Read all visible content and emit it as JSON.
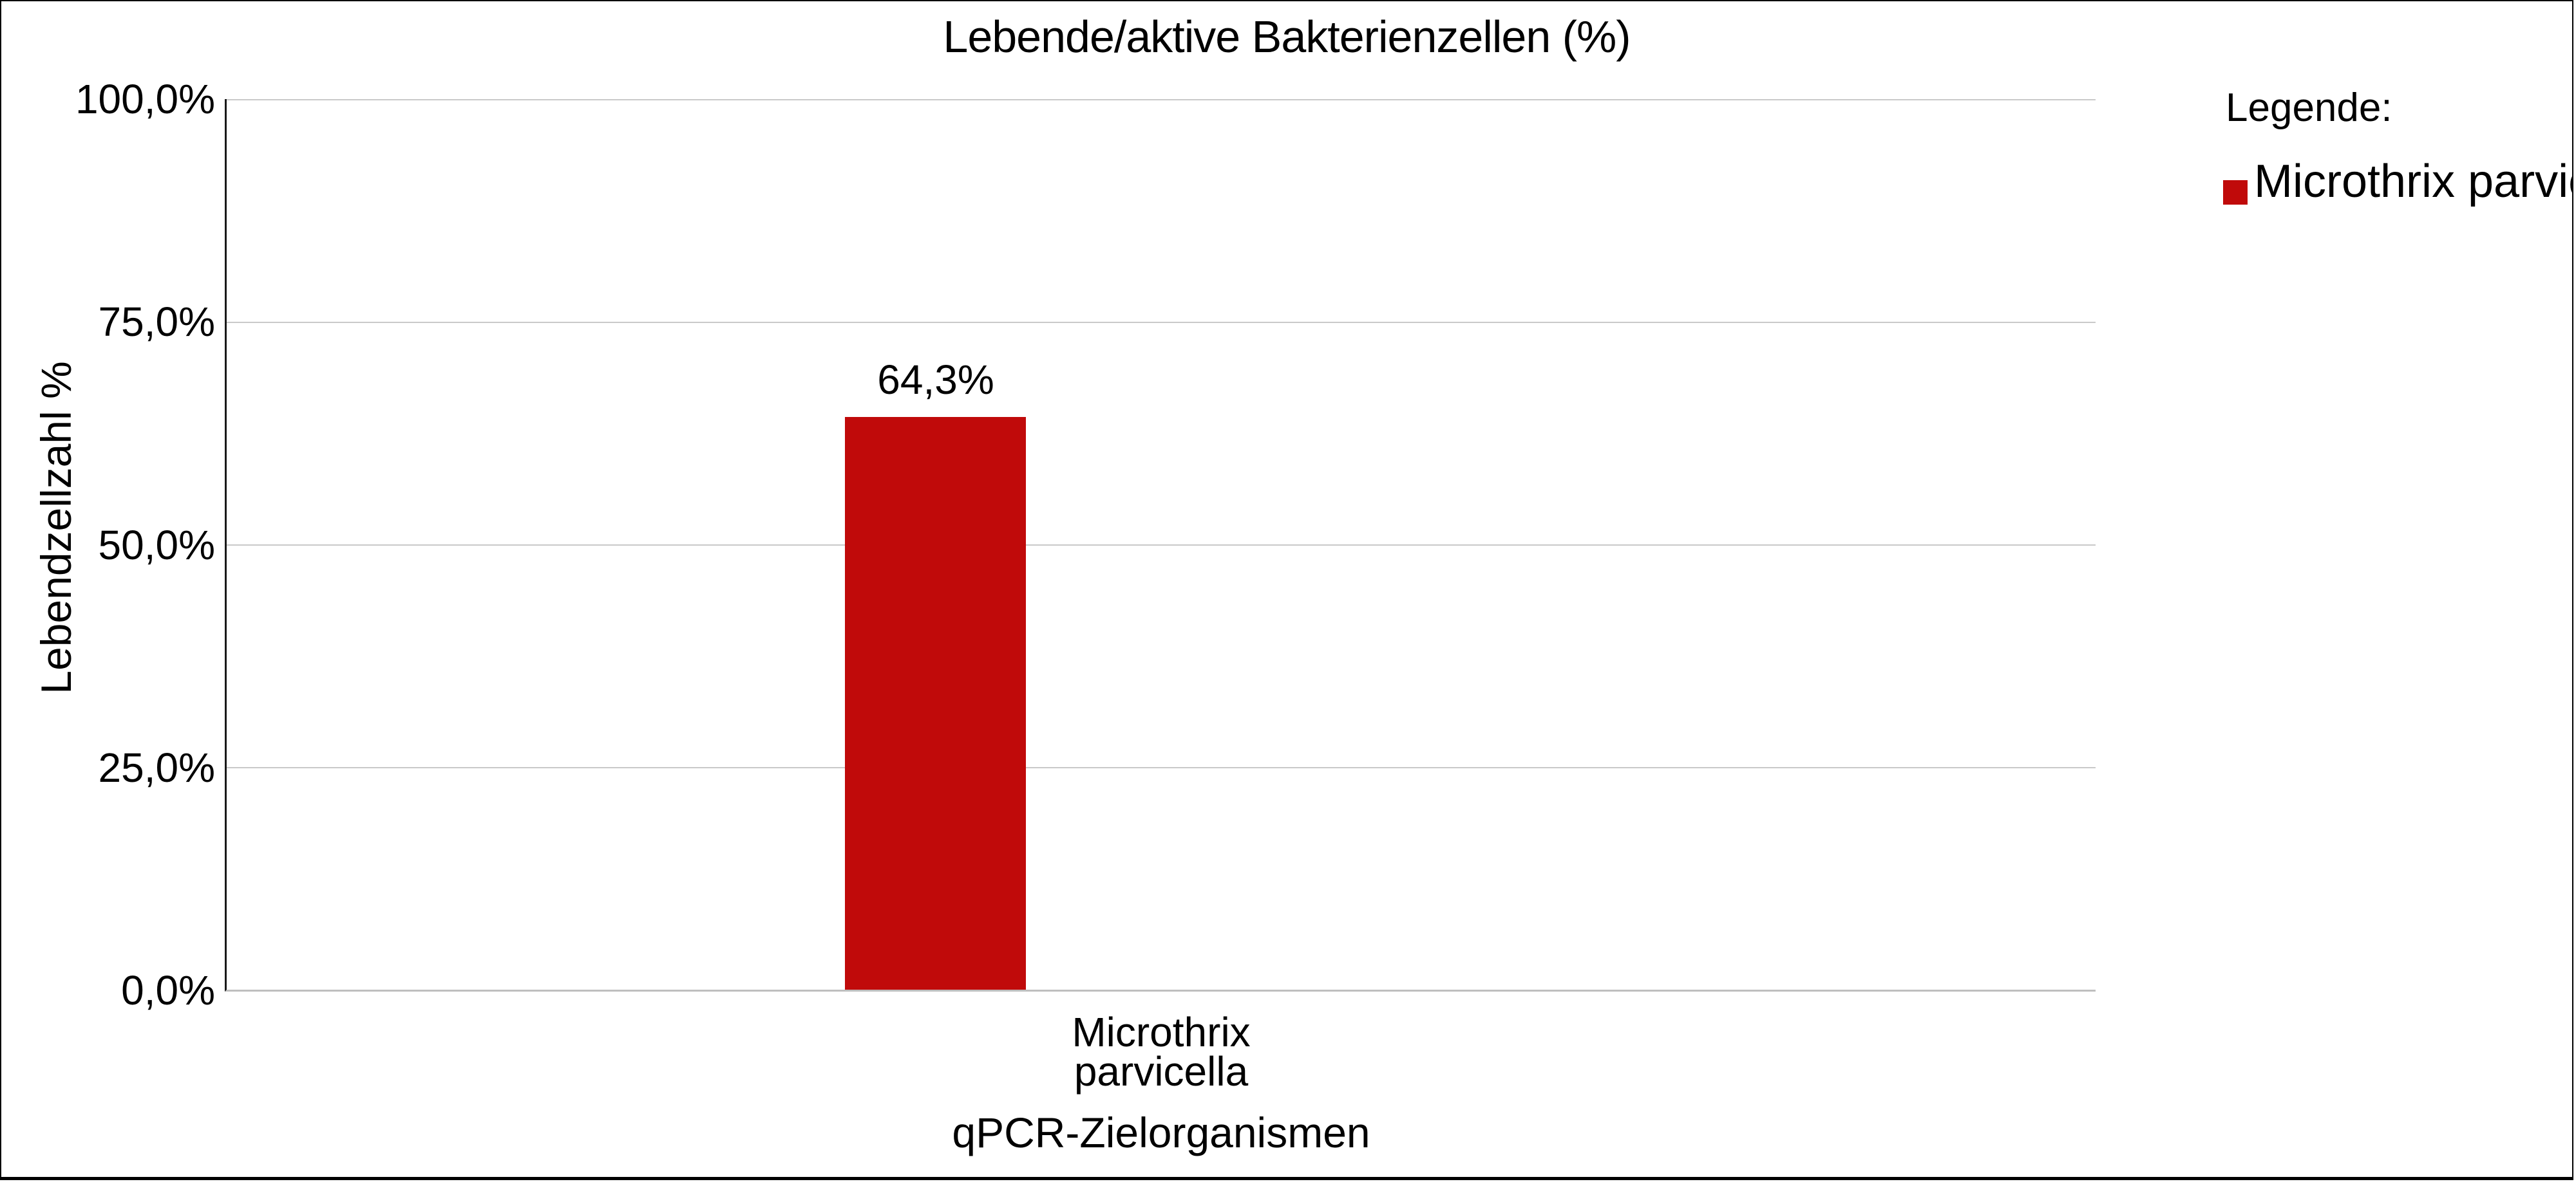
{
  "window": {
    "background": "#ffffff",
    "border_color": "#000000"
  },
  "chart_data": {
    "type": "bar",
    "title": "Lebende/aktive Bakterienzellen (%)",
    "xlabel": "qPCR-Zielorganismen",
    "ylabel": "Lebendzellzahl %",
    "categories": [
      "Microthrix parvicella"
    ],
    "category_tick_lines": [
      [
        "Microthrix",
        "parvicella"
      ]
    ],
    "values": [
      64.3
    ],
    "value_labels": [
      "64,3%"
    ],
    "ylim": [
      0,
      100
    ],
    "yticks": [
      {
        "value": 100,
        "label": "100,0%"
      },
      {
        "value": 75,
        "label": "75,0%"
      },
      {
        "value": 50,
        "label": "50,0%"
      },
      {
        "value": 25,
        "label": "25,0%"
      },
      {
        "value": 0,
        "label": "0,0%"
      }
    ],
    "grid": "horizontal",
    "series_color": "#C00A0A",
    "gridline_color": "#C9C9C9",
    "x_axis_line_color": "#BFBFBF",
    "y_axis_line_color": "#1A1A1A",
    "legend_position": "right",
    "legend": {
      "title": "Legende:",
      "entries": [
        {
          "label": "Microthrix parvicella",
          "color": "#C00A0A"
        }
      ]
    }
  }
}
